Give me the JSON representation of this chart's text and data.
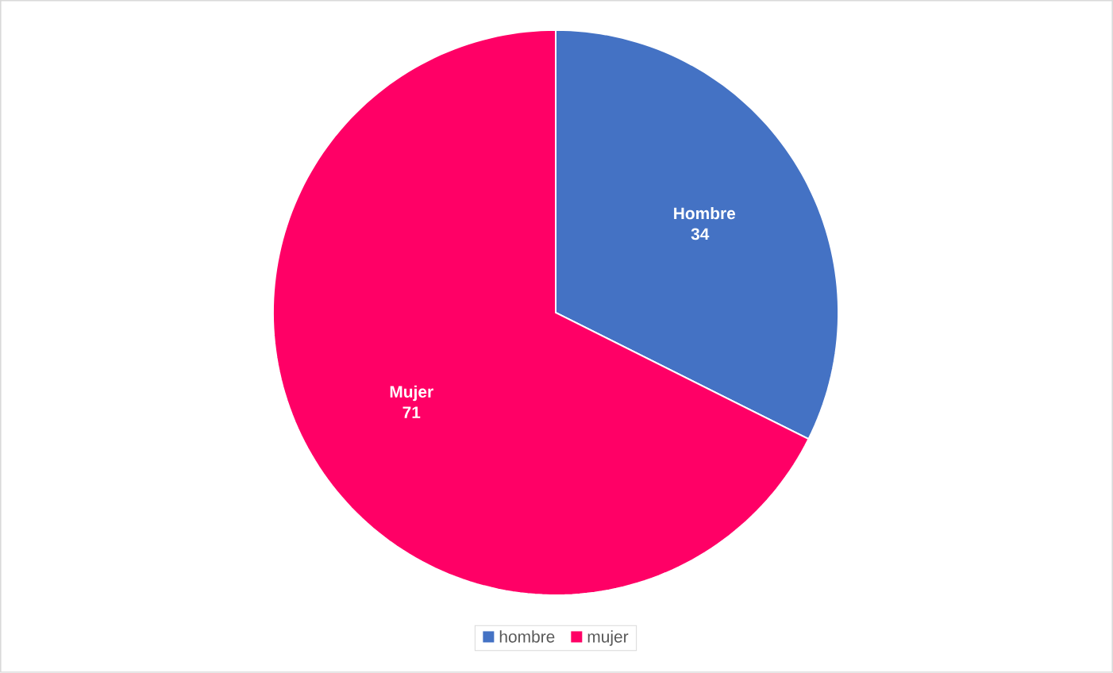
{
  "chart_data": {
    "type": "pie",
    "categories": [
      "hombre",
      "mujer"
    ],
    "values": [
      34,
      71
    ],
    "colors": [
      "#4472c4",
      "#ff0066"
    ],
    "value_labels": [
      "Hombre 34",
      "Mujer 71"
    ],
    "legend": "bottom"
  }
}
